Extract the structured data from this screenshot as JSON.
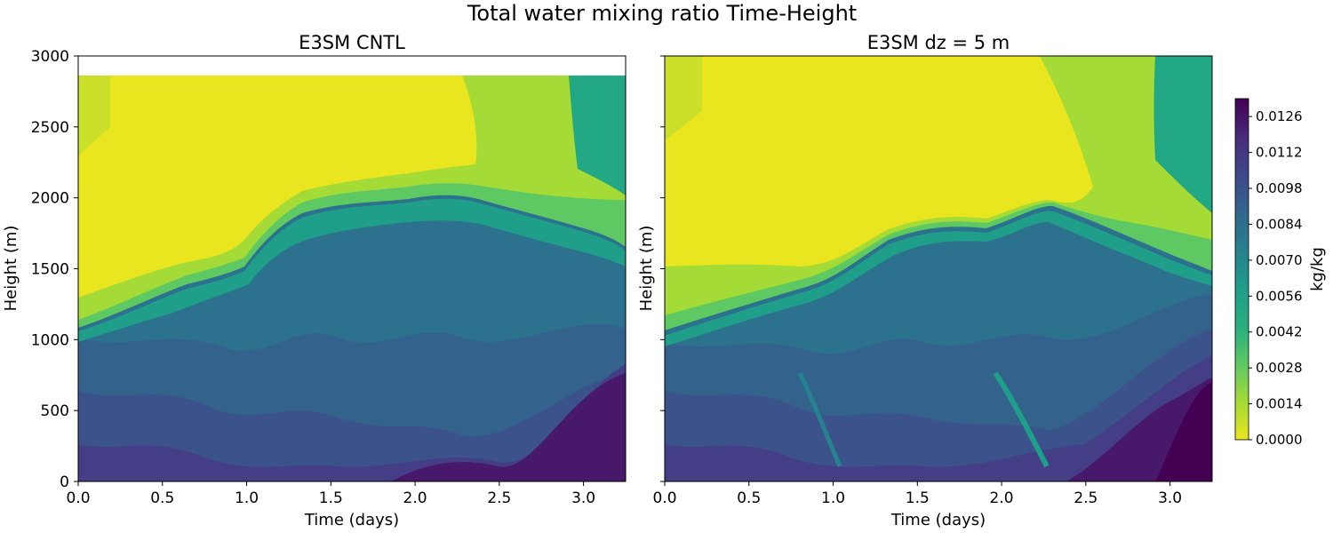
{
  "figure": {
    "title": "Total water mixing ratio Time-Height"
  },
  "chart_data": [
    {
      "type": "heatmap",
      "title": "E3SM CNTL",
      "xlabel": "Time (days)",
      "ylabel": "Height (m)",
      "xlim": [
        0.0,
        3.25
      ],
      "ylim": [
        0,
        3000
      ],
      "xticks": [
        "0.0",
        "0.5",
        "1.0",
        "1.5",
        "2.0",
        "2.5",
        "3.0"
      ],
      "yticks": [
        "0",
        "500",
        "1000",
        "1500",
        "2000",
        "2500",
        "3000"
      ],
      "data_top_height": 2860,
      "dry_layer_base": [
        [
          0.0,
          1080
        ],
        [
          0.2,
          1160
        ],
        [
          0.4,
          1280
        ],
        [
          0.6,
          1380
        ],
        [
          0.8,
          1440
        ],
        [
          1.0,
          1480
        ],
        [
          1.1,
          1620
        ],
        [
          1.3,
          1780
        ],
        [
          1.5,
          1860
        ],
        [
          1.7,
          1890
        ],
        [
          1.9,
          1940
        ],
        [
          2.1,
          1990
        ],
        [
          2.25,
          2000
        ],
        [
          2.4,
          1950
        ],
        [
          2.6,
          1880
        ],
        [
          2.8,
          1820
        ],
        [
          3.0,
          1760
        ],
        [
          3.25,
          1600
        ]
      ],
      "description": "Total water mixing ratio contours versus time and height"
    },
    {
      "type": "heatmap",
      "title": "E3SM dz = 5 m",
      "xlabel": "Time (days)",
      "ylabel": "Height (m)",
      "xlim": [
        0.0,
        3.25
      ],
      "ylim": [
        0,
        3000
      ],
      "xticks": [
        "0.0",
        "0.5",
        "1.0",
        "1.5",
        "2.0",
        "2.5",
        "3.0"
      ],
      "yticks": [
        "0",
        "500",
        "1000",
        "1500",
        "2000",
        "2500",
        "3000"
      ],
      "data_top_height": 3000,
      "dry_layer_base": [
        [
          0.0,
          1020
        ],
        [
          0.2,
          1120
        ],
        [
          0.4,
          1240
        ],
        [
          0.6,
          1330
        ],
        [
          0.8,
          1390
        ],
        [
          1.0,
          1470
        ],
        [
          1.2,
          1620
        ],
        [
          1.4,
          1730
        ],
        [
          1.6,
          1820
        ],
        [
          1.8,
          1780
        ],
        [
          2.0,
          1840
        ],
        [
          2.25,
          1930
        ],
        [
          2.5,
          1800
        ],
        [
          2.7,
          1700
        ],
        [
          2.9,
          1600
        ],
        [
          3.1,
          1520
        ],
        [
          3.25,
          1440
        ]
      ],
      "description": "Total water mixing ratio contours versus time and height"
    }
  ],
  "colorbar": {
    "label": "kg/kg",
    "ticks": [
      "0.0000",
      "0.0014",
      "0.0028",
      "0.0042",
      "0.0056",
      "0.0070",
      "0.0084",
      "0.0098",
      "0.0112",
      "0.0126"
    ],
    "vmin": 0.0,
    "vmax": 0.0133,
    "levels": 19
  }
}
